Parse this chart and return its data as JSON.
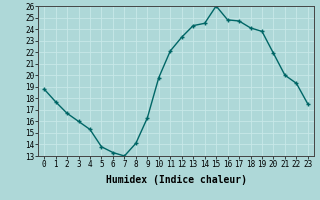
{
  "x": [
    0,
    1,
    2,
    3,
    4,
    5,
    6,
    7,
    8,
    9,
    10,
    11,
    12,
    13,
    14,
    15,
    16,
    17,
    18,
    19,
    20,
    21,
    22,
    23
  ],
  "y": [
    18.8,
    17.7,
    16.7,
    16.0,
    15.3,
    13.8,
    13.3,
    13.0,
    14.1,
    16.3,
    19.8,
    22.1,
    23.3,
    24.3,
    24.5,
    26.0,
    24.8,
    24.7,
    24.1,
    23.8,
    21.9,
    20.0,
    19.3,
    17.5
  ],
  "xlim": [
    -0.5,
    23.5
  ],
  "ylim": [
    13,
    26
  ],
  "yticks": [
    13,
    14,
    15,
    16,
    17,
    18,
    19,
    20,
    21,
    22,
    23,
    24,
    25,
    26
  ],
  "xticks": [
    0,
    1,
    2,
    3,
    4,
    5,
    6,
    7,
    8,
    9,
    10,
    11,
    12,
    13,
    14,
    15,
    16,
    17,
    18,
    19,
    20,
    21,
    22,
    23
  ],
  "xlabel": "Humidex (Indice chaleur)",
  "line_color": "#006666",
  "marker_color": "#006666",
  "bg_color": "#aed8d8",
  "grid_color": "#c8e8e8",
  "tick_fontsize": 5.5,
  "xlabel_fontsize": 7,
  "marker": "+",
  "markersize": 3.5,
  "linewidth": 1.0
}
